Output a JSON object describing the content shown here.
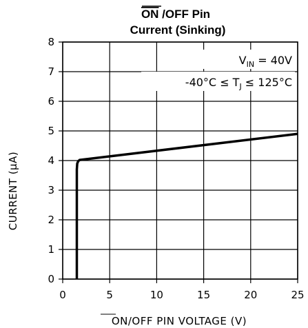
{
  "chart_data": {
    "type": "line",
    "title_overlined": "ON",
    "title_rest": " /OFF Pin",
    "subtitle": "Current (Sinking)",
    "xlabel_overlined": "ON",
    "xlabel_rest": "/OFF PIN VOLTAGE (V)",
    "ylabel": "CURRENT (μA)",
    "xlim": [
      0,
      25
    ],
    "ylim": [
      0,
      8
    ],
    "x_ticks": [
      "0",
      "5",
      "10",
      "15",
      "20",
      "25"
    ],
    "y_ticks": [
      "0",
      "1",
      "2",
      "3",
      "4",
      "5",
      "6",
      "7",
      "8"
    ],
    "grid": true,
    "annotation_line1": "V",
    "annotation_line1_sub": "IN",
    "annotation_line1_rest": " = 40V",
    "annotation_line2": "-40°C ≤ T",
    "annotation_line2_sub": "J",
    "annotation_line2_rest": " ≤ 125°C",
    "series": [
      {
        "x": [
          1.5,
          1.5,
          1.55,
          1.65,
          1.8,
          25
        ],
        "y": [
          0,
          3.7,
          3.9,
          3.98,
          4.02,
          4.9
        ]
      }
    ]
  }
}
